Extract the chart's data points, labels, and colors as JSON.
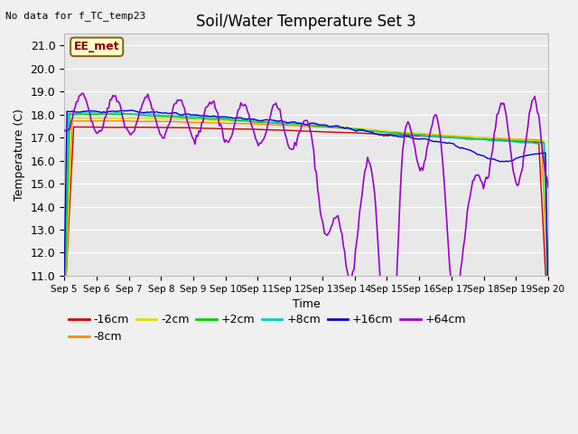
{
  "title": "Soil/Water Temperature Set 3",
  "xlabel": "Time",
  "ylabel": "Temperature (C)",
  "top_left_note": "No data for f_TC_temp23",
  "box_label": "EE_met",
  "ylim": [
    11.0,
    21.5
  ],
  "yticks": [
    11.0,
    12.0,
    13.0,
    14.0,
    15.0,
    16.0,
    17.0,
    18.0,
    19.0,
    20.0,
    21.0
  ],
  "xtick_labels": [
    "Sep 5",
    "Sep 6",
    "Sep 7",
    "Sep 8",
    "Sep 9",
    "Sep 10",
    "Sep 11",
    "Sep 12",
    "Sep 13",
    "Sep 14",
    "Sep 15",
    "Sep 16",
    "Sep 17",
    "Sep 18",
    "Sep 19",
    "Sep 20"
  ],
  "series": [
    {
      "label": "-16cm",
      "color": "#cc0000"
    },
    {
      "label": "-8cm",
      "color": "#ff8800"
    },
    {
      "label": "-2cm",
      "color": "#dddd00"
    },
    {
      "label": "+2cm",
      "color": "#00cc00"
    },
    {
      "label": "+8cm",
      "color": "#00cccc"
    },
    {
      "label": "+16cm",
      "color": "#0000cc"
    },
    {
      "label": "+64cm",
      "color": "#9900cc"
    }
  ],
  "fig_bg_color": "#f0f0f0",
  "plot_bg_color": "#e8e8e8",
  "grid_color": "#ffffff",
  "title_fontsize": 12,
  "axis_fontsize": 9,
  "legend_fontsize": 9,
  "figsize": [
    6.4,
    4.8
  ],
  "dpi": 100
}
